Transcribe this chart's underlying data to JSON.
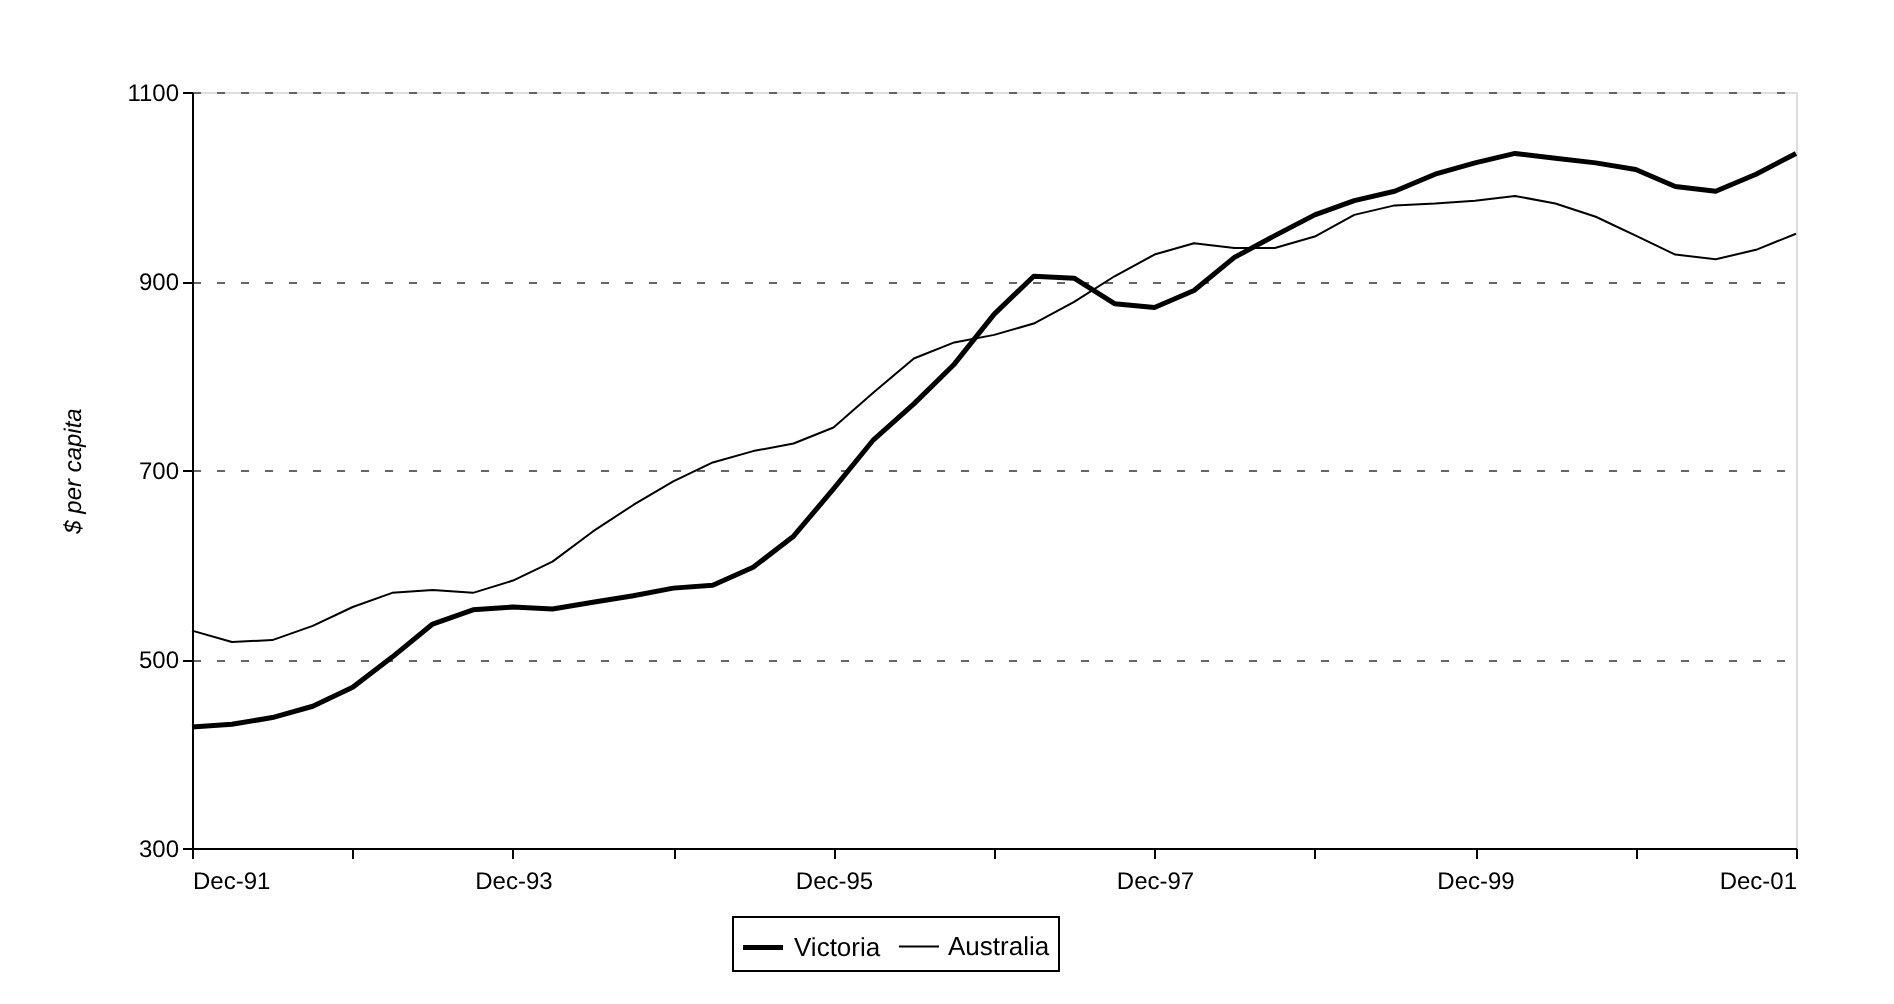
{
  "chart_data": {
    "type": "line",
    "ylabel": "$ per capita",
    "x": [
      "1991-12",
      "1992-03",
      "1992-06",
      "1992-09",
      "1992-12",
      "1993-03",
      "1993-06",
      "1993-09",
      "1993-12",
      "1994-03",
      "1994-06",
      "1994-09",
      "1994-12",
      "1995-03",
      "1995-06",
      "1995-09",
      "1995-12",
      "1996-03",
      "1996-06",
      "1996-09",
      "1996-12",
      "1997-03",
      "1997-06",
      "1997-09",
      "1997-12",
      "1998-03",
      "1998-06",
      "1998-09",
      "1998-12",
      "1999-03",
      "1999-06",
      "1999-09",
      "1999-12",
      "2000-03",
      "2000-06",
      "2000-09",
      "2000-12",
      "2001-03",
      "2001-06",
      "2001-09",
      "2001-12"
    ],
    "series": [
      {
        "name": "Victoria",
        "color": "#000000",
        "values": [
          428,
          431,
          438,
          450,
          470,
          502,
          537,
          552,
          555,
          553,
          560,
          567,
          575,
          578,
          597,
          630,
          680,
          732,
          770,
          812,
          865,
          905,
          903,
          876,
          872,
          890,
          925,
          948,
          970,
          985,
          995,
          1013,
          1025,
          1035,
          1030,
          1025,
          1018,
          1000,
          995,
          1013,
          1035
        ]
      },
      {
        "name": "Australia",
        "color": "#000000",
        "values": [
          530,
          518,
          520,
          535,
          555,
          570,
          573,
          570,
          583,
          603,
          635,
          663,
          688,
          708,
          720,
          728,
          745,
          782,
          818,
          835,
          843,
          855,
          878,
          905,
          928,
          940,
          935,
          935,
          947,
          970,
          980,
          982,
          985,
          990,
          982,
          968,
          948,
          928,
          923,
          933,
          950
        ]
      }
    ],
    "xlim": [
      "1991-12",
      "2001-12"
    ],
    "xticks": [
      {
        "value": "1991-12",
        "label": "Dec-91"
      },
      {
        "value": "1992-12",
        "label": null
      },
      {
        "value": "1993-12",
        "label": "Dec-93"
      },
      {
        "value": "1994-12",
        "label": null
      },
      {
        "value": "1995-12",
        "label": "Dec-95"
      },
      {
        "value": "1996-12",
        "label": null
      },
      {
        "value": "1997-12",
        "label": "Dec-97"
      },
      {
        "value": "1998-12",
        "label": null
      },
      {
        "value": "1999-12",
        "label": "Dec-99"
      },
      {
        "value": "2000-12",
        "label": null
      },
      {
        "value": "2001-12",
        "label": "Dec-01"
      }
    ],
    "ylim": [
      300,
      1100
    ],
    "yticks": [
      300,
      500,
      700,
      900,
      1100
    ],
    "grid": "y",
    "legend": "bottom",
    "marker": "none",
    "line_style": "solid"
  }
}
